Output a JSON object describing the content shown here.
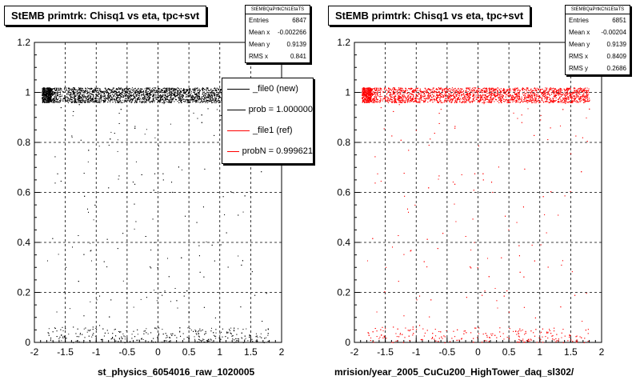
{
  "footer": "",
  "chart_data": [
    {
      "type": "scatter",
      "title": "StEMB primtrk: Chisq1 vs eta, tpc+svt",
      "xlabel": "st_physics_6054016_raw_1020005",
      "ylabel": "",
      "xlim": [
        -2,
        2
      ],
      "ylim": [
        0,
        1.2
      ],
      "xticks": [
        "-2",
        "-1.5",
        "-1",
        "-0.5",
        "0",
        "0.5",
        "1",
        "1.5",
        "2"
      ],
      "yticks": [
        "0",
        "0.2",
        "0.4",
        "0.6",
        "0.8",
        "1",
        "1.2"
      ],
      "grid": true,
      "color": "#000000",
      "stats": {
        "name": "StEMBQaPrtkChi1EtaTS",
        "rows": [
          {
            "label": "Entries",
            "value": "6847"
          },
          {
            "label": "Mean x",
            "value": "-0.002266"
          },
          {
            "label": "Mean y",
            "value": "0.9139"
          },
          {
            "label": "RMS x",
            "value": "0.841"
          }
        ]
      },
      "legend": {
        "placement": "top-right",
        "entries": [
          {
            "label": "_file0 (new)",
            "color": "#000000"
          },
          {
            "label": "prob = 1.000000",
            "color": "#000000"
          },
          {
            "label": "_file1 (ref)",
            "color": "#ff0000"
          },
          {
            "label": "probN = 0.999621",
            "color": "#ff0000"
          }
        ]
      },
      "distribution": {
        "x_range": [
          -1.8,
          1.8
        ],
        "band_y": [
          0.96,
          1.02
        ],
        "bottom_y": [
          0.0,
          0.06
        ],
        "band_fraction": 0.86,
        "bottom_fraction": 0.09
      }
    },
    {
      "type": "scatter",
      "title": "StEMB primtrk: Chisq1 vs eta, tpc+svt",
      "xlabel": "mrision/year_2005_CuCu200_HighTower_daq_sl302/",
      "ylabel": "",
      "xlim": [
        -2,
        2
      ],
      "ylim": [
        0,
        1.2
      ],
      "xticks": [
        "-2",
        "-1.5",
        "-1",
        "-0.5",
        "0",
        "0.5",
        "1",
        "1.5",
        "2"
      ],
      "yticks": [
        "0",
        "0.2",
        "0.4",
        "0.6",
        "0.8",
        "1",
        "1.2"
      ],
      "grid": true,
      "color": "#ff0000",
      "stats": {
        "name": "StEMBQaPrtkChi1EtaTS",
        "rows": [
          {
            "label": "Entries",
            "value": "6851"
          },
          {
            "label": "Mean x",
            "value": "-0.00204"
          },
          {
            "label": "Mean y",
            "value": "0.9139"
          },
          {
            "label": "RMS x",
            "value": "0.8409"
          },
          {
            "label": "RMS y",
            "value": "0.2686"
          }
        ]
      },
      "distribution": {
        "x_range": [
          -1.8,
          1.8
        ],
        "band_y": [
          0.96,
          1.02
        ],
        "bottom_y": [
          0.0,
          0.06
        ],
        "band_fraction": 0.86,
        "bottom_fraction": 0.09
      }
    }
  ]
}
